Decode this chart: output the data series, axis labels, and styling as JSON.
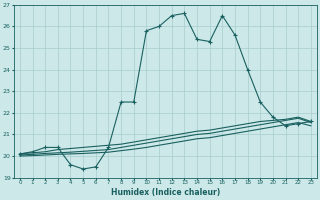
{
  "xlabel": "Humidex (Indice chaleur)",
  "bg_color": "#cce8e8",
  "grid_color": "#a8cccc",
  "line_color": "#1a6060",
  "xlim": [
    -0.5,
    23.5
  ],
  "ylim": [
    19,
    27
  ],
  "xticks": [
    0,
    1,
    2,
    3,
    4,
    5,
    6,
    7,
    8,
    9,
    10,
    11,
    12,
    13,
    14,
    15,
    16,
    17,
    18,
    19,
    20,
    21,
    22,
    23
  ],
  "yticks": [
    19,
    20,
    21,
    22,
    23,
    24,
    25,
    26,
    27
  ],
  "line1_x": [
    0,
    1,
    2,
    3,
    4,
    5,
    6,
    7,
    8,
    9,
    10,
    11,
    12,
    13,
    14,
    15,
    16,
    17,
    18,
    19,
    20,
    21,
    22,
    23
  ],
  "line1_y": [
    20.1,
    20.2,
    20.4,
    20.4,
    19.6,
    19.4,
    19.5,
    20.4,
    22.5,
    22.5,
    25.8,
    26.0,
    26.5,
    26.6,
    25.4,
    25.3,
    26.5,
    25.6,
    24.0,
    22.5,
    21.8,
    21.4,
    21.5,
    21.6
  ],
  "line2_x": [
    0,
    1,
    2,
    3,
    4,
    5,
    6,
    7,
    8,
    9,
    10,
    11,
    12,
    13,
    14,
    15,
    16,
    17,
    18,
    19,
    20,
    21,
    22,
    23
  ],
  "line2_y": [
    20.1,
    20.15,
    20.2,
    20.3,
    20.35,
    20.4,
    20.45,
    20.5,
    20.55,
    20.65,
    20.75,
    20.85,
    20.95,
    21.05,
    21.15,
    21.2,
    21.3,
    21.4,
    21.5,
    21.6,
    21.65,
    21.7,
    21.8,
    21.6
  ],
  "line3_x": [
    0,
    1,
    2,
    3,
    4,
    5,
    6,
    7,
    8,
    9,
    10,
    11,
    12,
    13,
    14,
    15,
    16,
    17,
    18,
    19,
    20,
    21,
    22,
    23
  ],
  "line3_y": [
    20.05,
    20.08,
    20.12,
    20.15,
    20.18,
    20.22,
    20.26,
    20.3,
    20.4,
    20.5,
    20.6,
    20.7,
    20.8,
    20.9,
    21.0,
    21.05,
    21.15,
    21.25,
    21.35,
    21.45,
    21.55,
    21.65,
    21.75,
    21.55
  ],
  "line4_x": [
    0,
    1,
    2,
    3,
    4,
    5,
    6,
    7,
    8,
    9,
    10,
    11,
    12,
    13,
    14,
    15,
    16,
    17,
    18,
    19,
    20,
    21,
    22,
    23
  ],
  "line4_y": [
    20.0,
    20.02,
    20.05,
    20.08,
    20.1,
    20.12,
    20.15,
    20.18,
    20.25,
    20.32,
    20.4,
    20.5,
    20.6,
    20.7,
    20.8,
    20.85,
    20.95,
    21.05,
    21.15,
    21.25,
    21.35,
    21.45,
    21.55,
    21.4
  ]
}
